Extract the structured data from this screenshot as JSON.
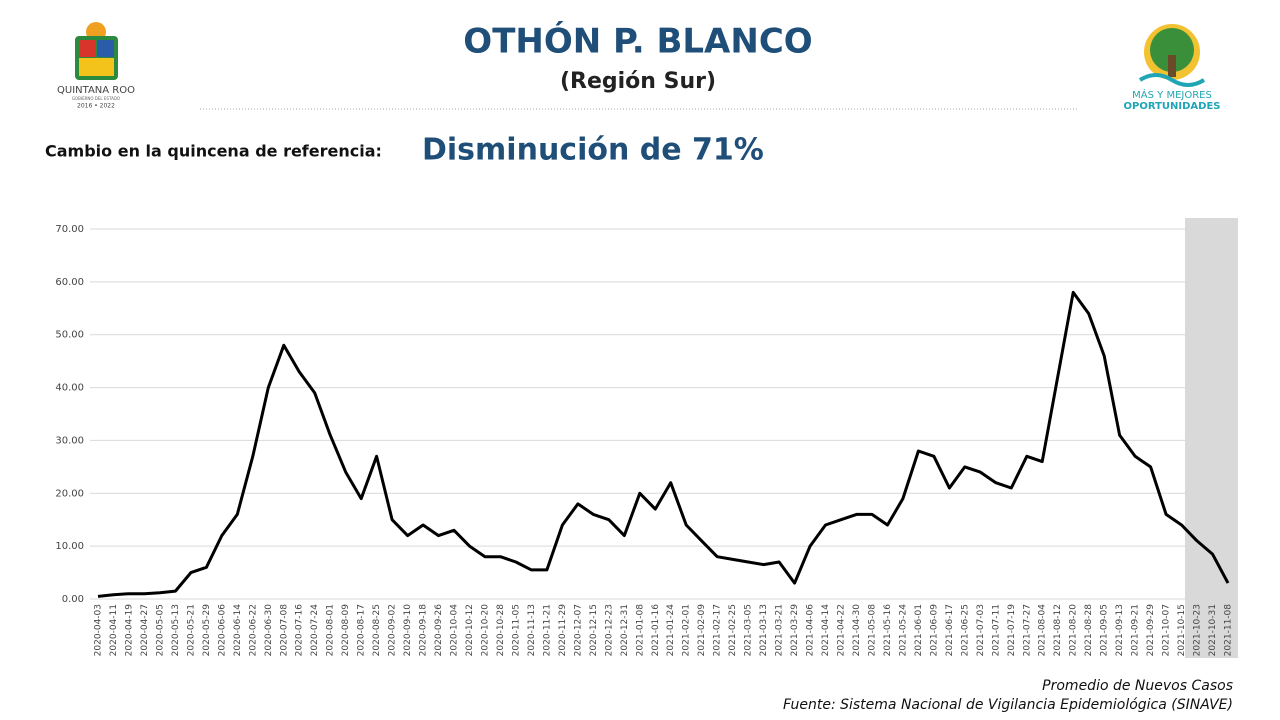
{
  "chart_data": {
    "type": "line",
    "title": "OTHÓN P. BLANCO",
    "subtitle": "(Región Sur)",
    "change_label": "Cambio en la quincena de referencia:",
    "change_text": "Disminución de 71%",
    "note": "Promedio de Nuevos Casos",
    "source": "Fuente: Sistema Nacional de Vigilancia Epidemiológica (SINAVE)",
    "color": "#000000",
    "grid": true,
    "ylim": [
      0,
      70
    ],
    "yticks": [
      {
        "value": 0,
        "label": "0.00"
      },
      {
        "value": 10,
        "label": "10.00"
      },
      {
        "value": 20,
        "label": "20.00"
      },
      {
        "value": 30,
        "label": "30.00"
      },
      {
        "value": 40,
        "label": "40.00"
      },
      {
        "value": 50,
        "label": "50.00"
      },
      {
        "value": 60,
        "label": "60.00"
      },
      {
        "value": 70,
        "label": "70.00"
      }
    ],
    "categories": [
      "2020-04-03",
      "2020-04-11",
      "2020-04-19",
      "2020-04-27",
      "2020-05-05",
      "2020-05-13",
      "2020-05-21",
      "2020-05-29",
      "2020-06-06",
      "2020-06-14",
      "2020-06-22",
      "2020-06-30",
      "2020-07-08",
      "2020-07-16",
      "2020-07-24",
      "2020-08-01",
      "2020-08-09",
      "2020-08-17",
      "2020-08-25",
      "2020-09-02",
      "2020-09-10",
      "2020-09-18",
      "2020-09-26",
      "2020-10-04",
      "2020-10-12",
      "2020-10-20",
      "2020-10-28",
      "2020-11-05",
      "2020-11-13",
      "2020-11-21",
      "2020-11-29",
      "2020-12-07",
      "2020-12-15",
      "2020-12-23",
      "2020-12-31",
      "2021-01-08",
      "2021-01-16",
      "2021-01-24",
      "2021-02-01",
      "2021-02-09",
      "2021-02-17",
      "2021-02-25",
      "2021-03-05",
      "2021-03-13",
      "2021-03-21",
      "2021-03-29",
      "2021-04-06",
      "2021-04-14",
      "2021-04-22",
      "2021-04-30",
      "2021-05-08",
      "2021-05-16",
      "2021-05-24",
      "2021-06-01",
      "2021-06-09",
      "2021-06-17",
      "2021-06-25",
      "2021-07-03",
      "2021-07-11",
      "2021-07-19",
      "2021-07-27",
      "2021-08-04",
      "2021-08-12",
      "2021-08-20",
      "2021-08-28",
      "2021-09-05",
      "2021-09-13",
      "2021-09-21",
      "2021-09-29",
      "2021-10-07",
      "2021-10-15",
      "2021-10-23",
      "2021-10-31",
      "2021-11-08"
    ],
    "values": [
      0.5,
      0.8,
      1,
      1,
      1.2,
      1.5,
      5,
      6,
      12,
      16,
      27,
      40,
      48,
      43,
      39,
      31,
      24,
      19,
      27,
      15,
      12,
      14,
      12,
      13,
      10,
      8,
      8,
      7,
      5.5,
      5.5,
      14,
      18,
      16,
      15,
      12,
      20,
      17,
      22,
      14,
      11,
      8,
      7.5,
      7,
      6.5,
      7,
      3,
      10,
      14,
      15,
      16,
      16,
      14,
      19,
      28,
      27,
      21,
      25,
      24,
      22,
      21,
      27,
      26,
      42,
      58,
      54,
      46,
      31,
      27,
      25,
      16,
      14,
      11,
      8.5,
      3
    ]
  },
  "logos": {
    "left": [
      "QUINTANA ROO",
      "GOBIERNO DEL ESTADO",
      "2016 • 2022"
    ],
    "right": [
      "MÁS Y MEJORES",
      "OPORTUNIDADES"
    ]
  }
}
